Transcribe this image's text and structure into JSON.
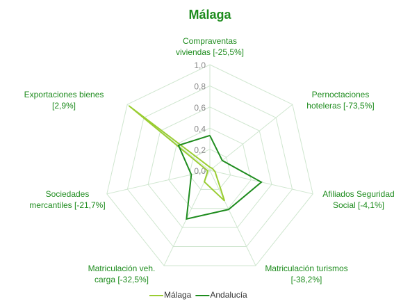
{
  "chart_data": {
    "type": "radar",
    "title": "Málaga",
    "categories": [
      [
        "Compraventas",
        "viviendas [-25,5%]"
      ],
      [
        "Pernoctaciones",
        "hoteleras [-73,5%]"
      ],
      [
        "Afiliados Seguridad",
        "Social [-4,1%]"
      ],
      [
        "Matriculación turismos",
        "[-38,2%]"
      ],
      [
        "Matriculación veh.",
        "carga [-32,5%]"
      ],
      [
        "Sociedades",
        "mercantiles [-21,7%]"
      ],
      [
        "Exportaciones bienes",
        "[2,9%]"
      ]
    ],
    "series": [
      {
        "name": "Málaga",
        "color": "#9acd32",
        "values": [
          0.03,
          0.03,
          0.05,
          0.32,
          0.12,
          0.02,
          0.98
        ]
      },
      {
        "name": "Andalucía",
        "color": "#1e8c1e",
        "values": [
          0.33,
          0.15,
          0.5,
          0.41,
          0.51,
          0.18,
          0.38
        ]
      }
    ],
    "ylim": [
      0,
      1
    ],
    "yticks": [
      {
        "value": 0,
        "label": "0,0"
      },
      {
        "value": 0.2,
        "label": "0,2"
      },
      {
        "value": 0.4,
        "label": "0,4"
      },
      {
        "value": 0.6,
        "label": "0,6"
      },
      {
        "value": 0.8,
        "label": "0,8"
      },
      {
        "value": 1,
        "label": "1,0"
      }
    ],
    "grid": true,
    "legend": "bottom"
  }
}
